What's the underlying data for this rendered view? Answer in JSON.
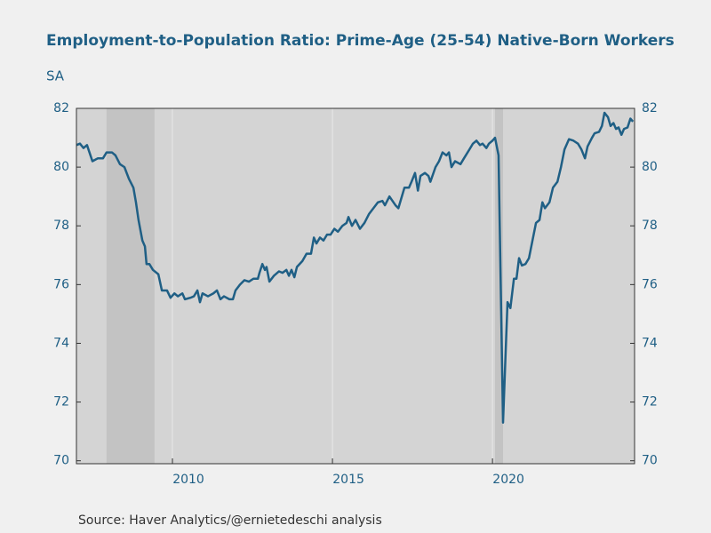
{
  "chart_data": {
    "type": "line",
    "title": "Employment-to-Population Ratio: Prime-Age (25-54) Native-Born Workers",
    "subtitle": "SA",
    "source": "Source:  Haver Analytics/@ernietedeschi analysis",
    "x": [
      2007.0,
      2007.11,
      2007.22,
      2007.33,
      2007.5,
      2007.67,
      2007.83,
      2007.94,
      2008.11,
      2008.22,
      2008.36,
      2008.5,
      2008.64,
      2008.78,
      2008.86,
      2008.94,
      2009.06,
      2009.14,
      2009.19,
      2009.28,
      2009.39,
      2009.56,
      2009.67,
      2009.83,
      2009.94,
      2010.06,
      2010.17,
      2010.31,
      2010.39,
      2010.56,
      2010.67,
      2010.78,
      2010.86,
      2010.94,
      2011.11,
      2011.28,
      2011.39,
      2011.5,
      2011.61,
      2011.78,
      2011.89,
      2011.97,
      2012.11,
      2012.25,
      2012.39,
      2012.53,
      2012.67,
      2012.72,
      2012.81,
      2012.89,
      2012.94,
      2013.03,
      2013.17,
      2013.33,
      2013.44,
      2013.56,
      2013.64,
      2013.72,
      2013.81,
      2013.89,
      2014.06,
      2014.19,
      2014.33,
      2014.42,
      2014.5,
      2014.61,
      2014.72,
      2014.83,
      2014.94,
      2015.06,
      2015.17,
      2015.31,
      2015.44,
      2015.5,
      2015.61,
      2015.72,
      2015.86,
      2016.0,
      2016.14,
      2016.28,
      2016.42,
      2016.56,
      2016.64,
      2016.78,
      2016.97,
      2017.06,
      2017.25,
      2017.39,
      2017.47,
      2017.58,
      2017.67,
      2017.75,
      2017.89,
      2018.0,
      2018.06,
      2018.22,
      2018.33,
      2018.44,
      2018.56,
      2018.64,
      2018.72,
      2018.83,
      2019.0,
      2019.11,
      2019.28,
      2019.39,
      2019.5,
      2019.61,
      2019.69,
      2019.81,
      2019.89,
      2020.0,
      2020.08,
      2020.19,
      2020.33,
      2020.47,
      2020.56,
      2020.67,
      2020.75,
      2020.83,
      2020.92,
      2021.03,
      2021.14,
      2021.25,
      2021.36,
      2021.47,
      2021.56,
      2021.64,
      2021.78,
      2021.89,
      2022.03,
      2022.14,
      2022.25,
      2022.39,
      2022.53,
      2022.67,
      2022.78,
      2022.89,
      2022.97,
      2023.11,
      2023.19,
      2023.33,
      2023.42,
      2023.5,
      2023.61,
      2023.69,
      2023.78,
      2023.86,
      2023.94,
      2024.03,
      2024.11,
      2024.22,
      2024.31,
      2024.39
    ],
    "series": [
      {
        "color": "#1f5f85",
        "values": [
          80.75,
          80.8,
          80.65,
          80.75,
          80.2,
          80.3,
          80.3,
          80.5,
          80.5,
          80.4,
          80.1,
          80.0,
          79.6,
          79.3,
          78.8,
          78.2,
          77.5,
          77.3,
          76.7,
          76.7,
          76.5,
          76.35,
          75.8,
          75.8,
          75.55,
          75.7,
          75.6,
          75.7,
          75.5,
          75.55,
          75.6,
          75.8,
          75.4,
          75.7,
          75.6,
          75.7,
          75.8,
          75.5,
          75.6,
          75.5,
          75.5,
          75.8,
          76.0,
          76.15,
          76.1,
          76.2,
          76.2,
          76.4,
          76.7,
          76.5,
          76.6,
          76.1,
          76.3,
          76.45,
          76.4,
          76.5,
          76.3,
          76.5,
          76.25,
          76.6,
          76.8,
          77.05,
          77.05,
          77.6,
          77.4,
          77.6,
          77.5,
          77.7,
          77.7,
          77.9,
          77.8,
          78.0,
          78.1,
          78.3,
          78.0,
          78.2,
          77.9,
          78.1,
          78.4,
          78.6,
          78.8,
          78.85,
          78.7,
          79.0,
          78.7,
          78.6,
          79.3,
          79.3,
          79.5,
          79.8,
          79.2,
          79.7,
          79.8,
          79.7,
          79.5,
          80.0,
          80.2,
          80.5,
          80.4,
          80.5,
          80.0,
          80.2,
          80.1,
          80.3,
          80.6,
          80.8,
          80.9,
          80.75,
          80.8,
          80.65,
          80.8,
          80.9,
          81.0,
          80.4,
          71.3,
          75.4,
          75.2,
          76.2,
          76.2,
          76.9,
          76.65,
          76.7,
          76.9,
          77.5,
          78.1,
          78.2,
          78.8,
          78.6,
          78.8,
          79.3,
          79.5,
          80.0,
          80.6,
          80.95,
          80.9,
          80.8,
          80.6,
          80.3,
          80.7,
          81.0,
          81.15,
          81.2,
          81.4,
          81.85,
          81.7,
          81.4,
          81.5,
          81.3,
          81.35,
          81.1,
          81.3,
          81.35,
          81.65,
          81.55
        ]
      }
    ],
    "shaded_periods": [
      [
        2007.94,
        2009.44
      ],
      [
        2020.08,
        2020.33
      ]
    ],
    "shade_color": "#c3c3c3",
    "xlim": [
      2007.0,
      2024.44
    ],
    "xticks": [
      2010,
      2015,
      2020
    ],
    "ylim": [
      69.9,
      82.0
    ],
    "yticks": [
      70,
      72,
      74,
      76,
      78,
      80,
      82
    ],
    "grid": true
  }
}
